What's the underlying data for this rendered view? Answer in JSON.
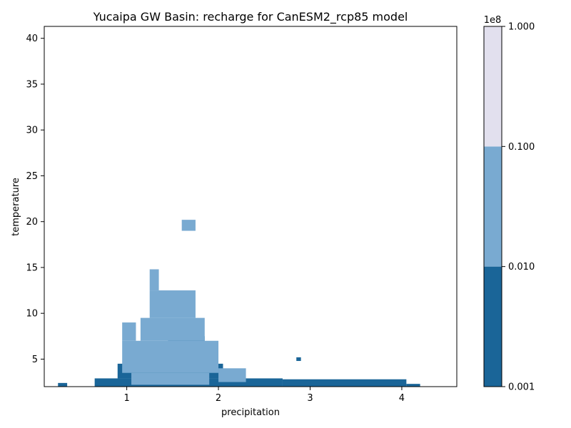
{
  "chart_data": {
    "type": "heatmap",
    "title": "Yucaipa GW Basin: recharge for CanESM2_rcp85 model",
    "xlabel": "precipitation",
    "ylabel": "temperature",
    "xlim": [
      0.1,
      4.6
    ],
    "ylim": [
      2.0,
      41.3
    ],
    "x_ticks": [
      1,
      2,
      3,
      4
    ],
    "y_ticks": [
      5,
      10,
      15,
      20,
      25,
      30,
      35,
      40
    ],
    "grid": false,
    "colorbar": {
      "scale": "log",
      "multiplier": "1e8",
      "levels": [
        0.001,
        0.01,
        0.1,
        1.0
      ],
      "tick_labels": [
        "0.001",
        "0.010",
        "0.100",
        "1.000"
      ],
      "colors": [
        "#1a6598",
        "#79aad1",
        "#e2e0ee"
      ]
    },
    "regions": [
      {
        "level": 0,
        "x": [
          0.25,
          0.35
        ],
        "y": [
          2.0,
          2.4
        ]
      },
      {
        "level": 0,
        "x": [
          0.65,
          2.7
        ],
        "y": [
          2.0,
          2.9
        ]
      },
      {
        "level": 0,
        "x": [
          2.7,
          4.05
        ],
        "y": [
          2.0,
          2.8
        ]
      },
      {
        "level": 0,
        "x": [
          4.05,
          4.2
        ],
        "y": [
          2.0,
          2.3
        ]
      },
      {
        "level": 0,
        "x": [
          2.85,
          2.9
        ],
        "y": [
          4.8,
          5.2
        ]
      },
      {
        "level": 0,
        "x": [
          0.9,
          2.05
        ],
        "y": [
          2.9,
          4.5
        ]
      },
      {
        "level": 0,
        "x": [
          1.45,
          1.85
        ],
        "y": [
          4.5,
          7.5
        ]
      },
      {
        "level": 1,
        "x": [
          1.05,
          1.9
        ],
        "y": [
          2.2,
          3.5
        ]
      },
      {
        "level": 1,
        "x": [
          0.95,
          2.0
        ],
        "y": [
          3.5,
          7.0
        ]
      },
      {
        "level": 1,
        "x": [
          1.15,
          1.85
        ],
        "y": [
          7.0,
          9.5
        ]
      },
      {
        "level": 1,
        "x": [
          0.95,
          1.1
        ],
        "y": [
          7.0,
          9.0
        ]
      },
      {
        "level": 1,
        "x": [
          1.25,
          1.75
        ],
        "y": [
          9.5,
          12.5
        ]
      },
      {
        "level": 1,
        "x": [
          1.25,
          1.35
        ],
        "y": [
          12.5,
          14.8
        ]
      },
      {
        "level": 1,
        "x": [
          1.6,
          1.75
        ],
        "y": [
          19.0,
          20.2
        ]
      },
      {
        "level": 1,
        "x": [
          2.0,
          2.3
        ],
        "y": [
          2.5,
          4.0
        ]
      }
    ]
  }
}
